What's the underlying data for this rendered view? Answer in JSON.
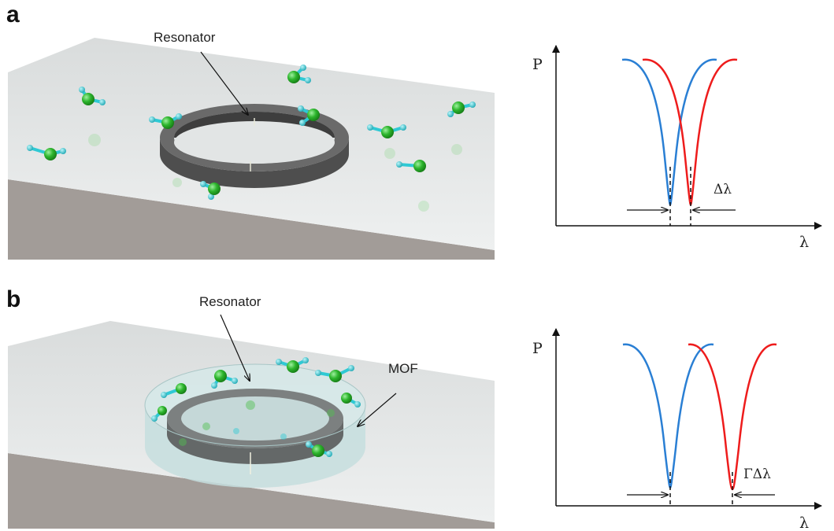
{
  "panels": [
    {
      "letter": "a",
      "resonator_label": "Resonator",
      "graph": {
        "y_axis": "P",
        "x_axis": "λ",
        "shift_label": "Δλ"
      }
    },
    {
      "letter": "b",
      "resonator_label": "Resonator",
      "mof_label": "MOF",
      "graph": {
        "y_axis": "P",
        "x_axis": "λ",
        "shift_label": "ΓΔλ"
      }
    }
  ],
  "colors": {
    "before_shift_curve": "#2a7fd4",
    "after_shift_curve": "#ee1c1c",
    "molecule_center": "#2db52d",
    "molecule_arm": "#2fc9d4",
    "ring": "#5a5a5a",
    "substrate_top": "#e3e6e6",
    "substrate_side": "#a29c98"
  }
}
